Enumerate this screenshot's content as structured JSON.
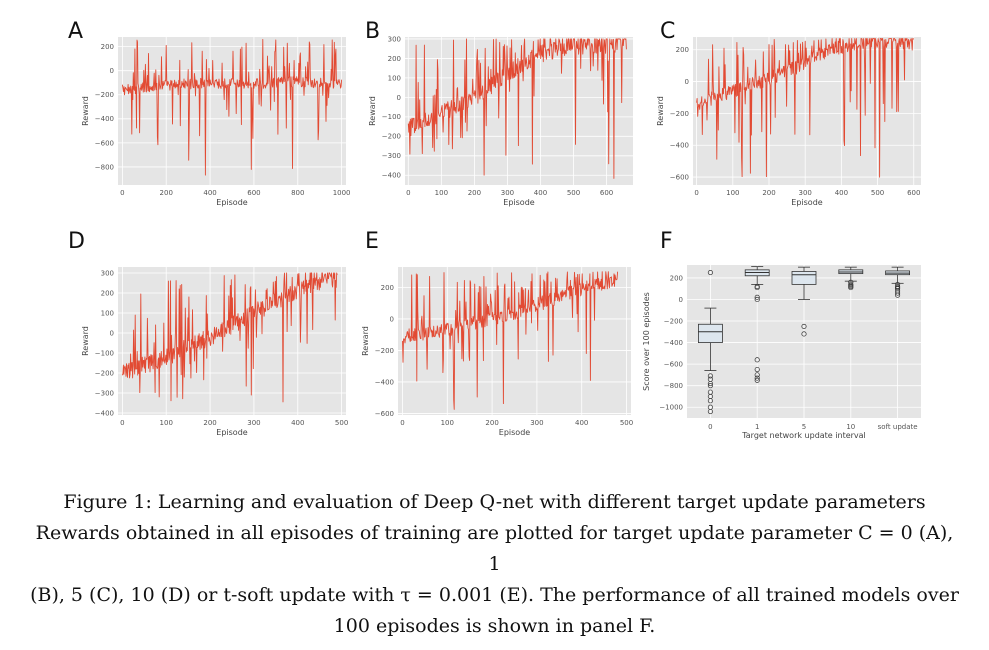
{
  "chart_data": [
    {
      "panel": "A",
      "type": "line",
      "xlabel": "Episode",
      "ylabel": "Reward",
      "xlim": [
        -20,
        1020
      ],
      "ylim": [
        -950,
        280
      ],
      "xticks": [
        0,
        200,
        400,
        600,
        800,
        1000
      ],
      "yticks": [
        -800,
        -600,
        -400,
        -200,
        0,
        200
      ],
      "series": [
        {
          "color": "#e24a33",
          "x_range": [
            0,
            1000
          ],
          "trend": [
            [
              0,
              -160
            ],
            [
              100,
              -140
            ],
            [
              200,
              -120
            ],
            [
              300,
              -110
            ],
            [
              400,
              -100
            ],
            [
              500,
              -110
            ],
            [
              600,
              -110
            ],
            [
              700,
              -100
            ],
            [
              800,
              -90
            ],
            [
              900,
              -100
            ],
            [
              1000,
              -110
            ]
          ],
          "y_min": -930,
          "y_max": 260
        }
      ],
      "grid": true
    },
    {
      "panel": "B",
      "type": "line",
      "xlabel": "Episode",
      "ylabel": "Reward",
      "xlim": [
        -10,
        680
      ],
      "ylim": [
        -450,
        310
      ],
      "xticks": [
        0,
        100,
        200,
        300,
        400,
        500,
        600
      ],
      "yticks": [
        -400,
        -300,
        -200,
        -100,
        0,
        100,
        200,
        300
      ],
      "series": [
        {
          "color": "#e24a33",
          "x_range": [
            0,
            660
          ],
          "trend": [
            [
              0,
              -160
            ],
            [
              50,
              -120
            ],
            [
              100,
              -80
            ],
            [
              150,
              -40
            ],
            [
              200,
              0
            ],
            [
              250,
              60
            ],
            [
              300,
              120
            ],
            [
              350,
              180
            ],
            [
              400,
              220
            ],
            [
              450,
              250
            ],
            [
              500,
              260
            ],
            [
              550,
              270
            ],
            [
              600,
              270
            ],
            [
              660,
              280
            ]
          ],
          "y_min": -430,
          "y_max": 300
        }
      ],
      "grid": true
    },
    {
      "panel": "C",
      "type": "line",
      "xlabel": "Episode",
      "ylabel": "Reward",
      "xlim": [
        -10,
        620
      ],
      "ylim": [
        -650,
        280
      ],
      "xticks": [
        0,
        100,
        200,
        300,
        400,
        500,
        600
      ],
      "yticks": [
        -600,
        -400,
        -200,
        0,
        200
      ],
      "series": [
        {
          "color": "#e24a33",
          "x_range": [
            0,
            600
          ],
          "trend": [
            [
              0,
              -140
            ],
            [
              50,
              -100
            ],
            [
              100,
              -60
            ],
            [
              150,
              -20
            ],
            [
              200,
              20
            ],
            [
              250,
              60
            ],
            [
              300,
              120
            ],
            [
              350,
              180
            ],
            [
              400,
              220
            ],
            [
              450,
              250
            ],
            [
              500,
              260
            ],
            [
              550,
              250
            ],
            [
              600,
              240
            ]
          ],
          "y_min": -640,
          "y_max": 270
        }
      ],
      "grid": true
    },
    {
      "panel": "D",
      "type": "line",
      "xlabel": "Episode",
      "ylabel": "Reward",
      "xlim": [
        -10,
        510
      ],
      "ylim": [
        -410,
        330
      ],
      "xticks": [
        0,
        100,
        200,
        300,
        400,
        500
      ],
      "yticks": [
        -400,
        -300,
        -200,
        -100,
        0,
        100,
        200,
        300
      ],
      "series": [
        {
          "color": "#e24a33",
          "x_range": [
            0,
            490
          ],
          "trend": [
            [
              0,
              -200
            ],
            [
              50,
              -160
            ],
            [
              100,
              -120
            ],
            [
              150,
              -70
            ],
            [
              200,
              -20
            ],
            [
              250,
              40
            ],
            [
              300,
              100
            ],
            [
              350,
              160
            ],
            [
              400,
              210
            ],
            [
              450,
              250
            ],
            [
              490,
              270
            ]
          ],
          "y_min": -380,
          "y_max": 300
        }
      ],
      "grid": true
    },
    {
      "panel": "E",
      "type": "line",
      "xlabel": "Episode",
      "ylabel": "Reward",
      "xlim": [
        -10,
        510
      ],
      "ylim": [
        -610,
        330
      ],
      "xticks": [
        0,
        100,
        200,
        300,
        400,
        500
      ],
      "yticks": [
        -600,
        -400,
        -200,
        0,
        200
      ],
      "series": [
        {
          "color": "#e24a33",
          "x_range": [
            0,
            480
          ],
          "trend": [
            [
              0,
              -110
            ],
            [
              50,
              -90
            ],
            [
              100,
              -70
            ],
            [
              150,
              -30
            ],
            [
              200,
              0
            ],
            [
              250,
              40
            ],
            [
              300,
              90
            ],
            [
              350,
              140
            ],
            [
              400,
              190
            ],
            [
              450,
              230
            ],
            [
              480,
              250
            ]
          ],
          "y_min": -580,
          "y_max": 300
        }
      ],
      "grid": true
    },
    {
      "panel": "F",
      "type": "box",
      "xlabel": "Target network update interval",
      "ylabel": "Score over 100 episodes",
      "ylim": [
        -1100,
        320
      ],
      "yticks": [
        -1000,
        -800,
        -600,
        -400,
        -200,
        0,
        200
      ],
      "categories": [
        "0",
        "1",
        "5",
        "10",
        "soft update"
      ],
      "boxes": [
        {
          "q1": -400,
          "median": -300,
          "q3": -230,
          "whisker_low": -660,
          "whisker_high": -80,
          "outliers": [
            -710,
            -740,
            -780,
            -800,
            -860,
            -900,
            -940,
            -1000,
            -1040,
            250
          ]
        },
        {
          "q1": 220,
          "median": 250,
          "q3": 275,
          "whisker_low": 140,
          "whisker_high": 305,
          "outliers": [
            -560,
            -650,
            -700,
            -730,
            -750,
            0,
            20,
            110,
            120
          ]
        },
        {
          "q1": 140,
          "median": 230,
          "q3": 260,
          "whisker_low": 0,
          "whisker_high": 300,
          "outliers": [
            -250,
            -320
          ]
        },
        {
          "q1": 240,
          "median": 255,
          "q3": 275,
          "whisker_low": 170,
          "whisker_high": 300,
          "outliers": [
            160,
            140,
            120,
            110,
            130
          ]
        },
        {
          "q1": 230,
          "median": 245,
          "q3": 265,
          "whisker_low": 150,
          "whisker_high": 300,
          "outliers": [
            140,
            120,
            100,
            80,
            40,
            60,
            110
          ]
        }
      ],
      "grid": true
    }
  ],
  "caption": {
    "line1": "Figure 1: Learning and evaluation of Deep Q-net with different target update parameters",
    "line2": "Rewards obtained in all episodes of training are plotted for target update parameter C = 0 (A), 1",
    "line3": "(B), 5 (C), 10 (D) or t-soft update with τ = 0.001 (E). The performance of all trained models over",
    "line4": "100 episodes is shown in panel F."
  },
  "colors": {
    "plot_bg": "#e5e5e5",
    "grid": "#ffffff",
    "line": "#e24a33",
    "box_face": "#dde6ee",
    "box_edge": "#333333"
  }
}
